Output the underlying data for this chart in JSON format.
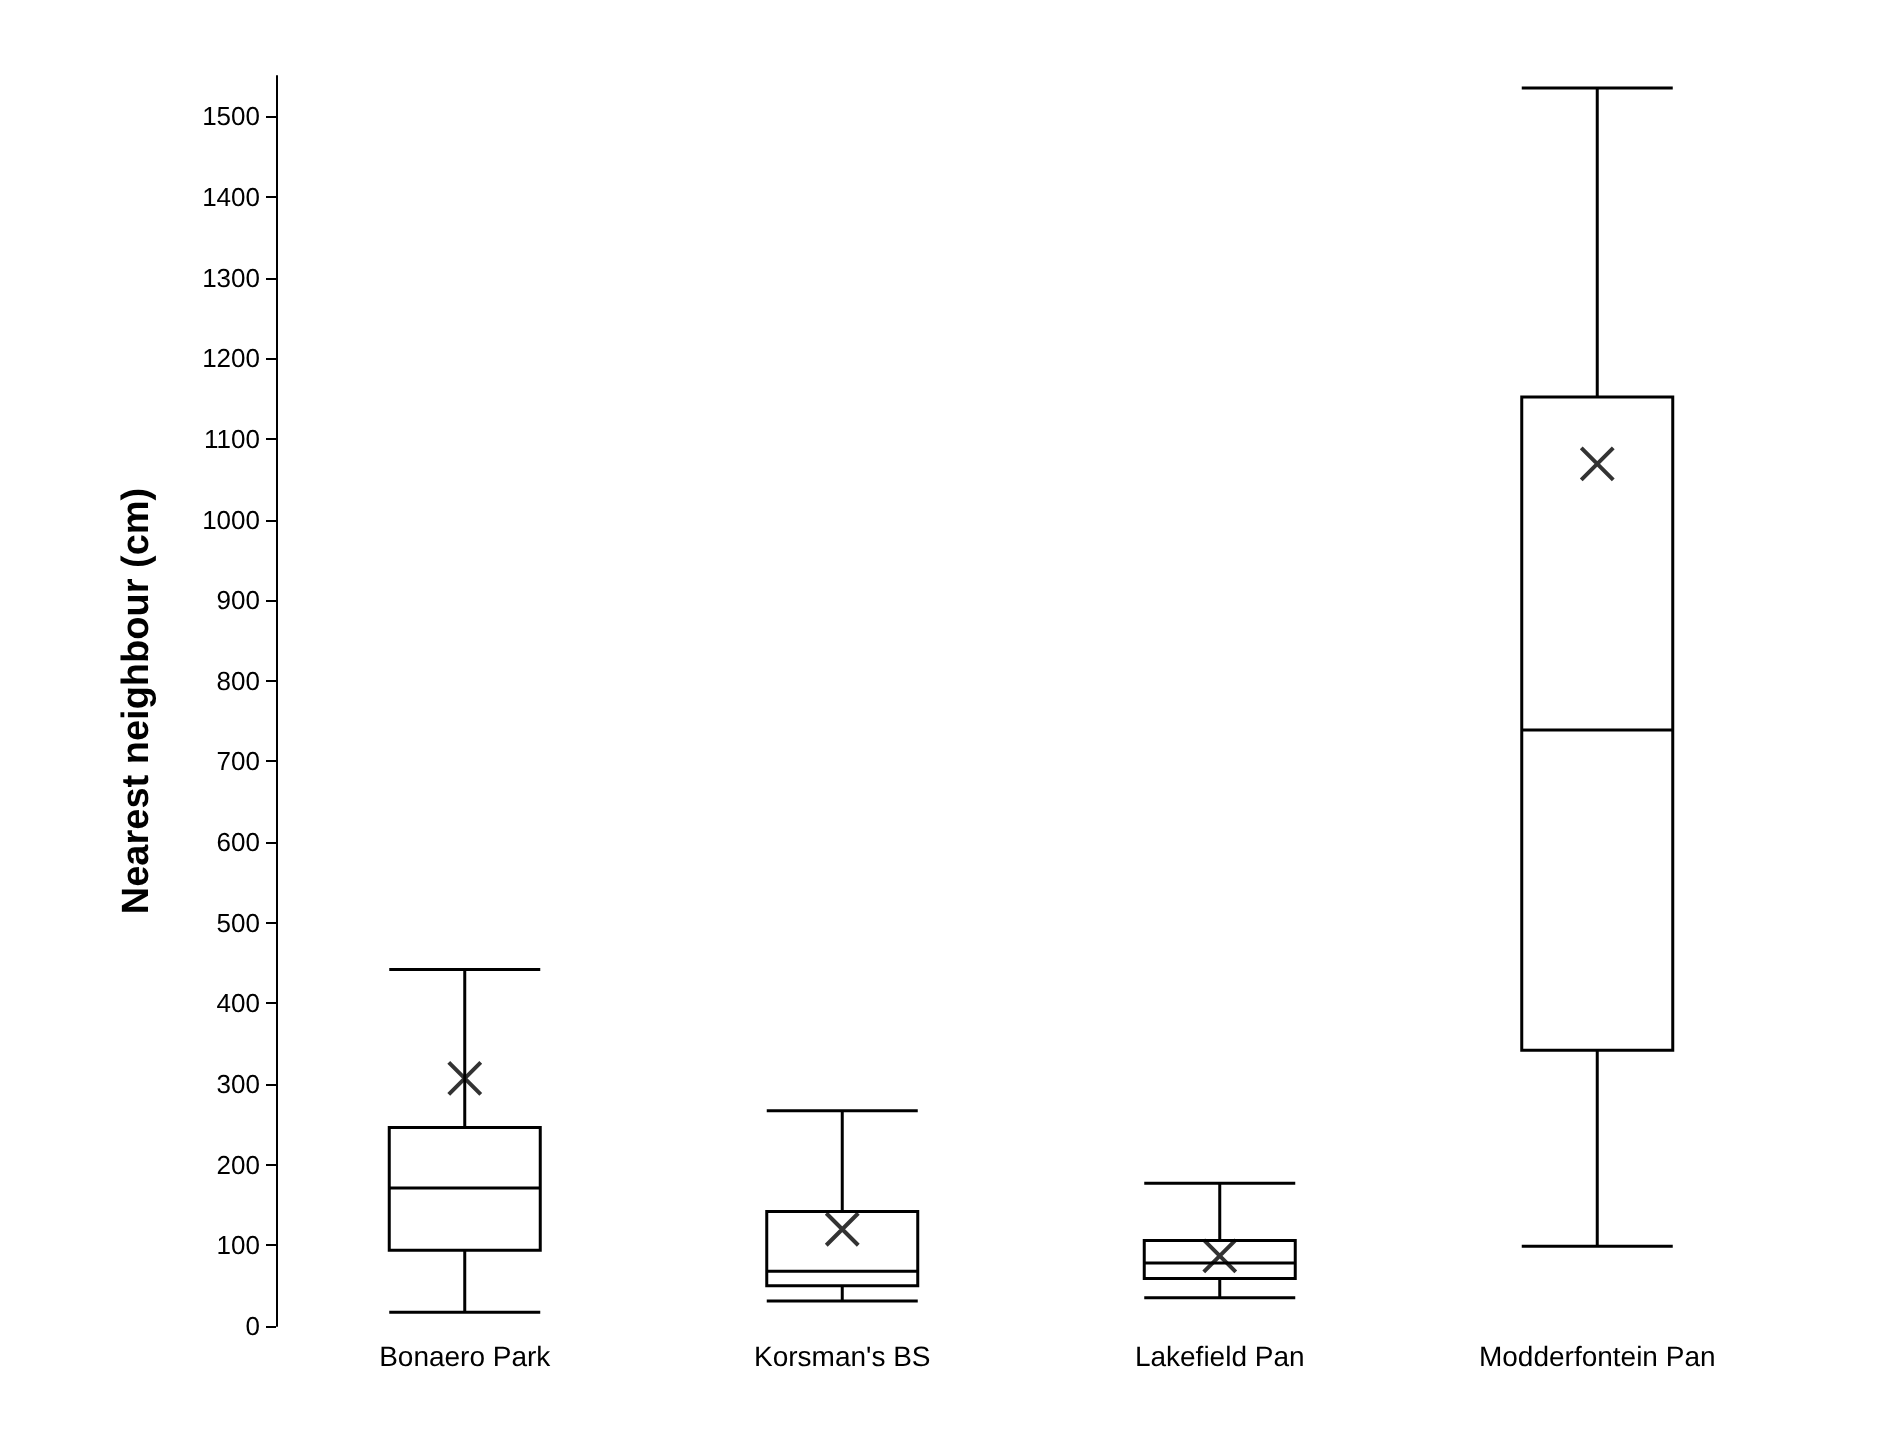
{
  "chart_data": {
    "type": "box",
    "ylabel": "Nearest neighbour (cm)",
    "categories": [
      "Bonaero Park",
      "Korsman's BS",
      "Lakefield Pan",
      "Modderfontein Pan"
    ],
    "boxes": [
      {
        "low": 17,
        "q1": 94,
        "median": 171,
        "q3": 246,
        "high": 442,
        "mean": 307
      },
      {
        "low": 31,
        "q1": 50,
        "median": 68,
        "q3": 142,
        "high": 267,
        "mean": 120
      },
      {
        "low": 35,
        "q1": 59,
        "median": 78,
        "q3": 106,
        "high": 177,
        "mean": 87
      },
      {
        "low": 99,
        "q1": 342,
        "median": 739,
        "q3": 1152,
        "high": 1535,
        "mean": 1069
      }
    ],
    "color": "#000000",
    "ylim": [
      0,
      1550
    ],
    "yticks": [
      0,
      100,
      200,
      300,
      400,
      500,
      600,
      700,
      800,
      900,
      1000,
      1100,
      1200,
      1300,
      1400,
      1500
    ],
    "grid": false,
    "marker": "cross"
  }
}
